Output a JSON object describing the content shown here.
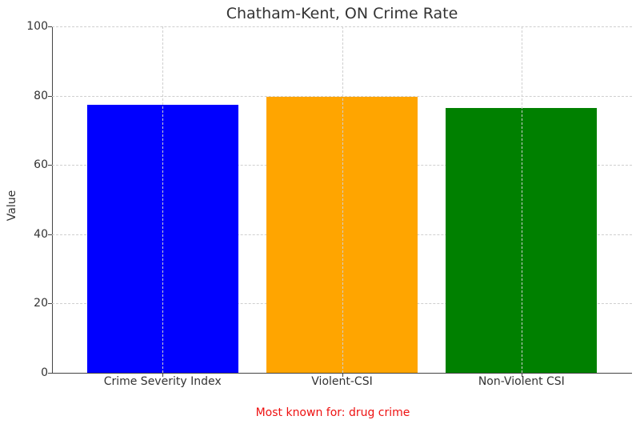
{
  "chart_data": {
    "type": "bar",
    "title": "Chatham-Kent, ON Crime Rate",
    "categories": [
      "Crime Severity Index",
      "Violent-CSI",
      "Non-Violent CSI"
    ],
    "values": [
      77.4,
      79.7,
      76.4
    ],
    "colors": [
      "#0000ff",
      "#ffa500",
      "#008000"
    ],
    "xlabel": "",
    "ylabel": "Value",
    "ylim": [
      0,
      100
    ],
    "yticks": [
      "0",
      "20",
      "40",
      "60",
      "80",
      "100"
    ],
    "grid": true,
    "legend": null,
    "annotation": "Most known for: drug crime",
    "annotation_color": "#ee1111"
  }
}
